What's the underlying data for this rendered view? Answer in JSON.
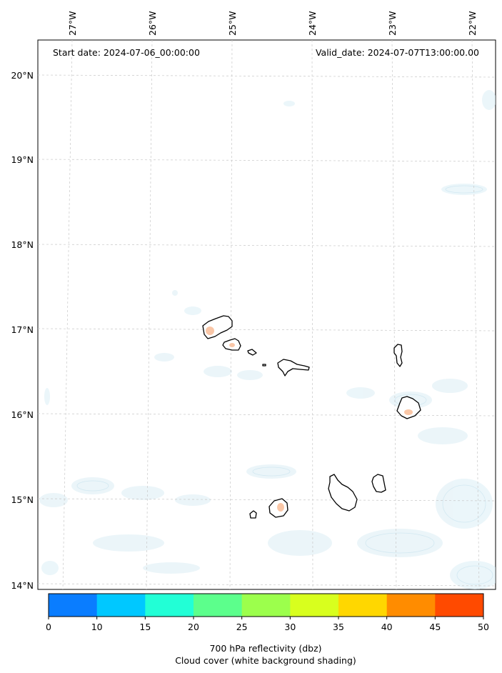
{
  "header": {
    "start_date": "Start date: 2024-07-06_00:00:00",
    "valid_date": "Valid_date: 2024-07-07T13:00:00.00"
  },
  "map": {
    "lon_labels": [
      "27°W",
      "26°W",
      "25°W",
      "24°W",
      "23°W",
      "22°W"
    ],
    "lat_labels": [
      "20°N",
      "19°N",
      "18°N",
      "17°N",
      "16°N",
      "15°N",
      "14°N"
    ],
    "gridlines": true,
    "region": "Cabo Verde islands"
  },
  "colorbar": {
    "ticks": [
      "0",
      "10",
      "15",
      "20",
      "25",
      "30",
      "35",
      "40",
      "45",
      "50"
    ],
    "colors": [
      "#0a7dff",
      "#00c8ff",
      "#22ffd6",
      "#5cff8c",
      "#9cff4c",
      "#d8ff1e",
      "#ffd700",
      "#ff8c00",
      "#ff4a00"
    ],
    "label_line1": "700 hPa reflectivity (dbz)",
    "label_line2": "Cloud cover (white background shading)"
  }
}
